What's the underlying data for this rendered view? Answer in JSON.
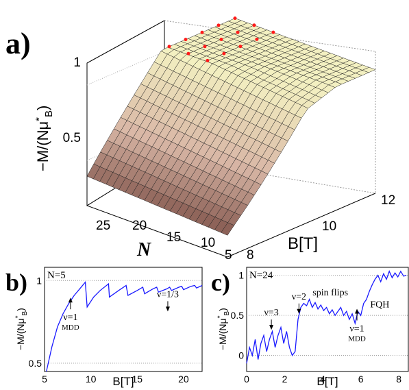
{
  "figure": {
    "panel_a_label": "a)",
    "panel_b_label": "b)",
    "panel_c_label": "c)"
  },
  "colors": {
    "surface_low": "#6b3c35",
    "surface_mid": "#d9b7a6",
    "surface_high": "#f4f2c2",
    "marker": "#ff1a1a",
    "line": "#1a1aff",
    "grid": "#9a9a9a"
  },
  "chart_data": [
    {
      "id": "a",
      "type": "surface",
      "ylabel_main": "−M/(Nμ",
      "ylabel_sup": "*",
      "ylabel_sub": "B",
      "ylabel_close": ")",
      "xlabel": "B[T]",
      "nlabel": "N",
      "z_ticks": [
        "0.5",
        "1"
      ],
      "b_ticks": [
        "8",
        "10",
        "12"
      ],
      "n_ticks": [
        "25",
        "20",
        "15",
        "10",
        "5"
      ],
      "B_range": [
        8,
        12
      ],
      "N_range": [
        5,
        27
      ],
      "z_range": [
        0.2,
        1.05
      ],
      "description_series": "magnetization surface with red markers along maximum ridge",
      "grid": true
    },
    {
      "id": "b",
      "type": "line",
      "annotation_n": "N=5",
      "ylabel": "−M/(Nμ",
      "ylabel_sup": "*",
      "ylabel_sub": "B",
      "ylabel_close": ")",
      "xlabel": "B[T]",
      "x_ticks": [
        "5",
        "10",
        "15",
        "20"
      ],
      "y_ticks": [
        "0.5",
        "1"
      ],
      "xlim": [
        5,
        22
      ],
      "ylim": [
        0.45,
        1.08
      ],
      "annotations": [
        {
          "text": "ν=1",
          "sub": "MDD",
          "x": 7.8,
          "y": 0.76
        },
        {
          "text": "ν=1/3",
          "sub": "",
          "x": 18.3,
          "y": 0.9
        }
      ],
      "x": [
        5.2,
        5.8,
        6.4,
        7.0,
        7.6,
        8.2,
        8.8,
        9.4,
        9.6,
        10.3,
        11.0,
        11.9,
        12.0,
        13.0,
        13.8,
        14.0,
        15.0,
        15.6,
        15.8,
        16.7,
        17.1,
        17.3,
        18.2,
        18.5,
        18.7,
        19.5,
        19.8,
        20.0,
        20.8,
        21.2,
        21.4,
        22.0
      ],
      "y": [
        0.45,
        0.6,
        0.72,
        0.8,
        0.86,
        0.91,
        0.95,
        0.99,
        0.84,
        0.9,
        0.94,
        0.98,
        0.9,
        0.94,
        0.97,
        0.91,
        0.94,
        0.96,
        0.92,
        0.95,
        0.96,
        0.93,
        0.95,
        0.96,
        0.94,
        0.96,
        0.965,
        0.945,
        0.965,
        0.97,
        0.955,
        0.97
      ]
    },
    {
      "id": "c",
      "type": "line",
      "annotation_n": "N=24",
      "ylabel": "−M/(Nμ",
      "ylabel_sup": "*",
      "ylabel_sub": "B",
      "ylabel_close": ")",
      "xlabel": "B[T]",
      "x_ticks": [
        "0",
        "2",
        "4",
        "6",
        "8"
      ],
      "y_ticks": [
        "0",
        "0.5",
        "1"
      ],
      "xlim": [
        0,
        8.5
      ],
      "ylim": [
        -0.2,
        1.1
      ],
      "annotations": [
        {
          "text": "ν=3",
          "sub": "",
          "x": 1.3,
          "y": 0.5
        },
        {
          "text": "ν=2",
          "sub": "",
          "x": 2.75,
          "y": 0.7
        },
        {
          "text": "spin flips",
          "sub": "",
          "x": 4.4,
          "y": 0.75
        },
        {
          "text": "ν=1",
          "sub": "MDD",
          "x": 5.8,
          "y": 0.3
        },
        {
          "text": "FQH",
          "sub": "",
          "x": 7.0,
          "y": 0.6
        }
      ],
      "x": [
        0.0,
        0.15,
        0.3,
        0.45,
        0.6,
        0.75,
        0.9,
        1.05,
        1.2,
        1.35,
        1.5,
        1.65,
        1.8,
        1.95,
        2.1,
        2.25,
        2.4,
        2.55,
        2.7,
        2.85,
        3.0,
        3.15,
        3.3,
        3.45,
        3.6,
        3.75,
        3.9,
        4.05,
        4.2,
        4.35,
        4.5,
        4.65,
        4.8,
        4.95,
        5.1,
        5.25,
        5.4,
        5.55,
        5.7,
        5.85,
        6.0,
        6.15,
        6.3,
        6.45,
        6.6,
        6.75,
        6.9,
        7.05,
        7.2,
        7.35,
        7.5,
        7.65,
        7.8,
        7.95,
        8.1,
        8.25,
        8.4
      ],
      "y": [
        -0.1,
        0.1,
        0.0,
        0.2,
        -0.05,
        0.15,
        0.25,
        0.05,
        0.2,
        0.3,
        0.1,
        0.25,
        0.35,
        0.15,
        0.3,
        0.1,
        0.0,
        0.05,
        0.45,
        0.6,
        0.65,
        0.62,
        0.7,
        0.6,
        0.66,
        0.58,
        0.63,
        0.56,
        0.6,
        0.52,
        0.57,
        0.5,
        0.55,
        0.6,
        0.5,
        0.55,
        0.45,
        0.52,
        0.4,
        0.55,
        0.5,
        0.65,
        0.7,
        0.8,
        0.88,
        0.95,
        1.0,
        0.92,
        1.02,
        0.95,
        1.05,
        0.97,
        1.03,
        0.98,
        1.05,
        0.99,
        1.0
      ]
    }
  ]
}
